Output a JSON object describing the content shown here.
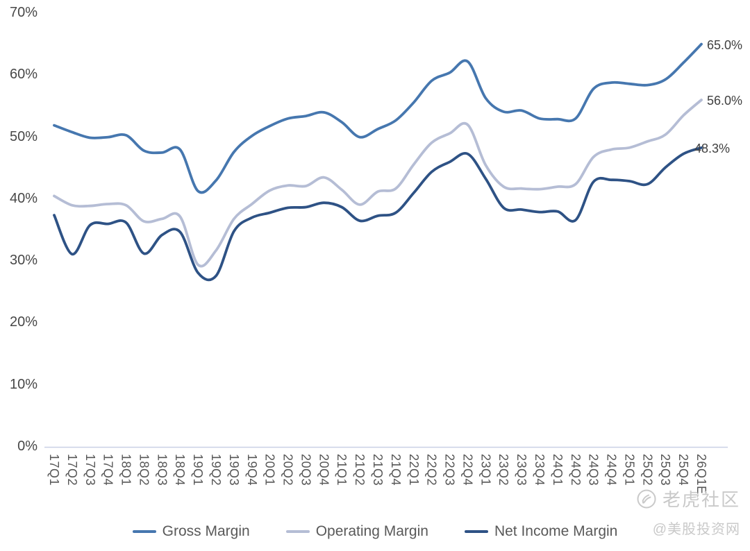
{
  "chart_data": {
    "type": "line",
    "title": "",
    "smooth": true,
    "grid": false,
    "legend_position": "bottom",
    "categories": [
      "17Q1",
      "17Q2",
      "17Q3",
      "17Q4",
      "18Q1",
      "18Q2",
      "18Q3",
      "18Q4",
      "19Q1",
      "19Q2",
      "19Q3",
      "19Q4",
      "20Q1",
      "20Q2",
      "20Q3",
      "20Q4",
      "21Q1",
      "21Q2",
      "21Q3",
      "21Q4",
      "22Q1",
      "22Q2",
      "22Q3",
      "22Q4",
      "23Q1",
      "23Q2",
      "23Q3",
      "23Q4",
      "24Q1",
      "24Q2",
      "24Q3",
      "24Q4",
      "25Q1",
      "25Q2",
      "25Q3",
      "25Q4",
      "26Q1E"
    ],
    "y_axis": {
      "min": 0,
      "max": 70,
      "step": 10,
      "format": "percent",
      "labels": [
        "0%",
        "10%",
        "20%",
        "30%",
        "40%",
        "50%",
        "60%",
        "70%"
      ]
    },
    "series": [
      {
        "name": "Gross Margin",
        "color": "#4677af",
        "end_label": "65.0%",
        "values": [
          51.9,
          50.8,
          49.9,
          50.0,
          50.3,
          47.8,
          47.5,
          48.0,
          41.3,
          43.0,
          47.6,
          50.2,
          51.8,
          53.0,
          53.4,
          54.0,
          52.4,
          50.0,
          51.3,
          52.7,
          55.6,
          59.1,
          60.4,
          62.2,
          56.3,
          54.1,
          54.3,
          53.0,
          52.9,
          53.0,
          57.8,
          58.8,
          58.6,
          58.4,
          59.3,
          62.0,
          65.0
        ]
      },
      {
        "name": "Operating Margin",
        "color": "#b5bdd5",
        "end_label": "56.0%",
        "values": [
          40.5,
          39.0,
          38.9,
          39.2,
          39.0,
          36.4,
          36.8,
          37.2,
          29.4,
          31.7,
          36.8,
          39.2,
          41.4,
          42.2,
          42.1,
          43.5,
          41.5,
          39.1,
          41.2,
          41.7,
          45.6,
          49.1,
          50.6,
          52.0,
          45.5,
          42.0,
          41.7,
          41.6,
          42.0,
          42.4,
          46.8,
          48.0,
          48.3,
          49.3,
          50.4,
          53.5,
          56.0
        ]
      },
      {
        "name": "Net Income Margin",
        "color": "#2e5285",
        "end_label": "48.3%",
        "values": [
          37.4,
          31.1,
          35.8,
          36.0,
          36.2,
          31.2,
          34.2,
          34.7,
          28.1,
          27.6,
          34.8,
          37.0,
          37.8,
          38.6,
          38.7,
          39.4,
          38.7,
          36.5,
          37.3,
          37.8,
          41.0,
          44.4,
          46.0,
          47.3,
          43.3,
          38.6,
          38.3,
          37.9,
          38.0,
          36.6,
          42.8,
          43.1,
          42.9,
          42.4,
          45.1,
          47.3,
          48.3
        ]
      }
    ]
  },
  "watermark": {
    "line1": "老虎社区",
    "line2": "@美股投资网",
    "icon": "tiger-paw-icon"
  },
  "colors": {
    "background": "#ffffff",
    "axis_line": "#c9d0e5",
    "y_axis_text": "#474747",
    "x_axis_text": "#565656",
    "end_label_text": "#3f3f3f",
    "legend_text": "#595959",
    "watermark": "#c9c9c9"
  }
}
